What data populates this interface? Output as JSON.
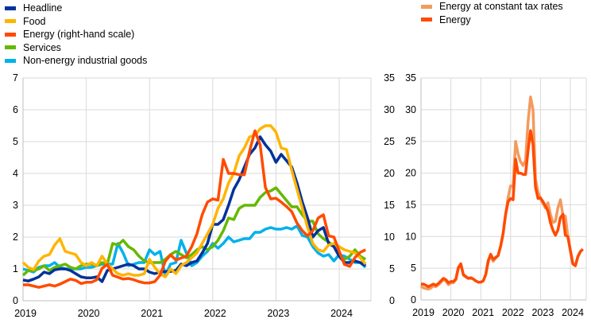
{
  "chart_data": [
    {
      "type": "line",
      "x_start": "2019-01",
      "frequency": "monthly",
      "x_ticks": [
        "2019",
        "2020",
        "2021",
        "2022",
        "2023",
        "2024"
      ],
      "ylim_left": [
        0,
        7
      ],
      "yticks_left": [
        "0",
        "1",
        "2",
        "3",
        "4",
        "5",
        "6",
        "7"
      ],
      "ylim_right": [
        0,
        35
      ],
      "yticks_right": [
        "0",
        "5",
        "10",
        "15",
        "20",
        "25",
        "30",
        "35"
      ],
      "grid": true,
      "legend_position": "top-left",
      "series": [
        {
          "name": "Headline",
          "axis": "left",
          "color": "#003299",
          "values": [
            0.65,
            0.62,
            0.68,
            0.75,
            0.9,
            0.85,
            0.97,
            1.0,
            1.0,
            0.95,
            0.85,
            0.75,
            0.72,
            0.72,
            0.75,
            0.6,
            0.95,
            1.0,
            1.05,
            1.1,
            1.15,
            1.1,
            1.0,
            1.0,
            0.9,
            0.85,
            0.9,
            0.92,
            0.92,
            0.95,
            1.15,
            1.1,
            1.2,
            1.25,
            1.5,
            1.8,
            2.4,
            2.4,
            2.55,
            3.0,
            3.5,
            3.8,
            4.2,
            4.6,
            4.8,
            5.15,
            4.9,
            4.7,
            4.35,
            4.6,
            4.4,
            4.2,
            3.7,
            3.1,
            2.6,
            2.0,
            2.2,
            2.3,
            1.8,
            1.7,
            1.4,
            1.2,
            1.2,
            1.25,
            1.2,
            1.1
          ]
        },
        {
          "name": "Food",
          "axis": "left",
          "color": "#ffb400",
          "values": [
            1.2,
            1.05,
            0.98,
            1.25,
            1.4,
            1.45,
            1.75,
            1.95,
            1.55,
            1.5,
            1.45,
            1.2,
            1.1,
            1.2,
            1.1,
            1.4,
            1.15,
            1.0,
            0.85,
            0.8,
            0.85,
            0.8,
            0.8,
            0.85,
            1.3,
            1.05,
            0.85,
            0.75,
            1.0,
            0.85,
            1.1,
            1.2,
            1.35,
            1.5,
            1.8,
            2.1,
            2.4,
            2.9,
            3.2,
            3.7,
            4.0,
            4.55,
            4.8,
            5.15,
            5.2,
            5.4,
            5.5,
            5.5,
            5.3,
            4.8,
            4.75,
            4.1,
            3.5,
            2.9,
            2.3,
            1.8,
            1.6,
            1.55,
            1.75,
            1.8,
            1.7,
            1.6,
            1.55,
            1.5,
            1.35,
            1.15
          ]
        },
        {
          "name": "Energy (right-hand scale)",
          "axis": "right",
          "color": "#ff4b00",
          "values": [
            2.5,
            2.5,
            2.3,
            2.1,
            2.3,
            2.5,
            2.3,
            2.6,
            3.0,
            3.4,
            3.2,
            2.7,
            2.9,
            2.9,
            3.3,
            5.1,
            5.7,
            4.0,
            3.7,
            3.4,
            3.5,
            3.3,
            3.0,
            2.8,
            2.8,
            3.0,
            4.0,
            6.2,
            7.2,
            6.4,
            6.7,
            7.0,
            8.5,
            10.5,
            13.5,
            15.5,
            16.0,
            15.8,
            22.2,
            20.0,
            20.0,
            19.8,
            19.8,
            23.5,
            26.7,
            24.5,
            17.8,
            16.0,
            16.1,
            15.5,
            14.8,
            14.0,
            12.2,
            11.0,
            10.2,
            11.0,
            13.0,
            13.5,
            10.2,
            10.0,
            7.8,
            5.7,
            5.4,
            6.8,
            7.6,
            8.0
          ]
        },
        {
          "name": "Services",
          "axis": "left",
          "color": "#65b800",
          "values": [
            0.8,
            0.95,
            0.95,
            1.0,
            1.1,
            0.95,
            1.05,
            1.1,
            1.15,
            1.05,
            1.0,
            1.1,
            1.15,
            1.15,
            1.1,
            1.2,
            1.15,
            1.8,
            1.75,
            1.9,
            1.7,
            1.6,
            1.4,
            1.25,
            1.2,
            1.2,
            1.2,
            1.3,
            1.45,
            1.55,
            1.45,
            1.35,
            1.45,
            1.6,
            1.7,
            1.6,
            1.7,
            1.9,
            2.2,
            2.6,
            2.55,
            2.9,
            3.0,
            3.0,
            3.0,
            3.25,
            3.4,
            3.45,
            3.55,
            3.35,
            3.15,
            2.95,
            2.95,
            2.7,
            2.5,
            2.5,
            2.1,
            1.95,
            1.85,
            1.7,
            1.4,
            1.3,
            1.4,
            1.6,
            1.4,
            1.3
          ]
        },
        {
          "name": "Non-energy industrial goods",
          "axis": "left",
          "color": "#00b1ea",
          "values": [
            1.0,
            0.95,
            0.9,
            1.05,
            1.1,
            1.1,
            1.2,
            1.05,
            1.0,
            1.0,
            1.0,
            1.0,
            1.05,
            1.05,
            1.1,
            1.15,
            1.15,
            1.15,
            1.8,
            1.5,
            1.1,
            1.15,
            1.2,
            1.2,
            1.6,
            1.45,
            1.55,
            0.8,
            1.15,
            1.2,
            1.9,
            1.5,
            1.1,
            1.2,
            1.4,
            1.55,
            1.8,
            1.65,
            1.8,
            2.0,
            1.85,
            1.9,
            1.95,
            1.95,
            2.15,
            2.15,
            2.25,
            2.3,
            2.25,
            2.25,
            2.3,
            2.25,
            2.35,
            2.05,
            2.0,
            1.7,
            1.5,
            1.4,
            1.45,
            1.25,
            1.45,
            1.4,
            1.3,
            1.2,
            1.2,
            1.05
          ]
        }
      ]
    },
    {
      "type": "line",
      "x_start": "2019-01",
      "frequency": "monthly",
      "x_ticks": [
        "2019",
        "2020",
        "2021",
        "2022",
        "2023",
        "2024"
      ],
      "ylim": [
        0,
        35
      ],
      "yticks": [
        "0",
        "5",
        "10",
        "15",
        "20",
        "25",
        "30",
        "35"
      ],
      "grid": true,
      "legend_position": "top",
      "series": [
        {
          "name": "Energy at constant tax rates",
          "color": "#f39a5e",
          "values": [
            2.2,
            1.9,
            1.8,
            1.7,
            1.9,
            2.2,
            2.1,
            2.4,
            2.8,
            3.2,
            3.0,
            2.4,
            2.7,
            2.7,
            3.2,
            5.0,
            5.7,
            3.9,
            3.6,
            3.4,
            3.4,
            3.3,
            3.0,
            2.8,
            2.8,
            3.0,
            4.0,
            6.0,
            7.0,
            6.1,
            6.6,
            7.0,
            8.5,
            10.5,
            13.5,
            16.2,
            18.0,
            17.8,
            25.0,
            23.0,
            21.8,
            21.2,
            22.0,
            28.0,
            32.0,
            30.0,
            19.0,
            17.0,
            16.0,
            15.2,
            14.5,
            15.3,
            13.5,
            12.2,
            12.4,
            14.5,
            15.8,
            13.4,
            13.2,
            10.0,
            7.8,
            5.7,
            5.4,
            6.8,
            7.6,
            8.0
          ]
        },
        {
          "name": "Energy",
          "color": "#ff4b00",
          "values": [
            2.5,
            2.5,
            2.3,
            2.1,
            2.3,
            2.5,
            2.3,
            2.6,
            3.0,
            3.4,
            3.2,
            2.7,
            2.9,
            2.9,
            3.3,
            5.1,
            5.7,
            4.0,
            3.7,
            3.4,
            3.5,
            3.3,
            3.0,
            2.8,
            2.8,
            3.0,
            4.0,
            6.2,
            7.2,
            6.4,
            6.7,
            7.0,
            8.5,
            10.5,
            13.5,
            15.5,
            16.0,
            15.8,
            22.2,
            20.0,
            20.0,
            19.8,
            19.8,
            23.5,
            26.7,
            24.5,
            17.8,
            16.0,
            16.1,
            15.5,
            14.8,
            14.0,
            12.2,
            11.0,
            10.2,
            11.0,
            13.0,
            13.5,
            10.2,
            10.0,
            7.8,
            5.7,
            5.4,
            6.8,
            7.6,
            8.0
          ]
        }
      ]
    }
  ]
}
